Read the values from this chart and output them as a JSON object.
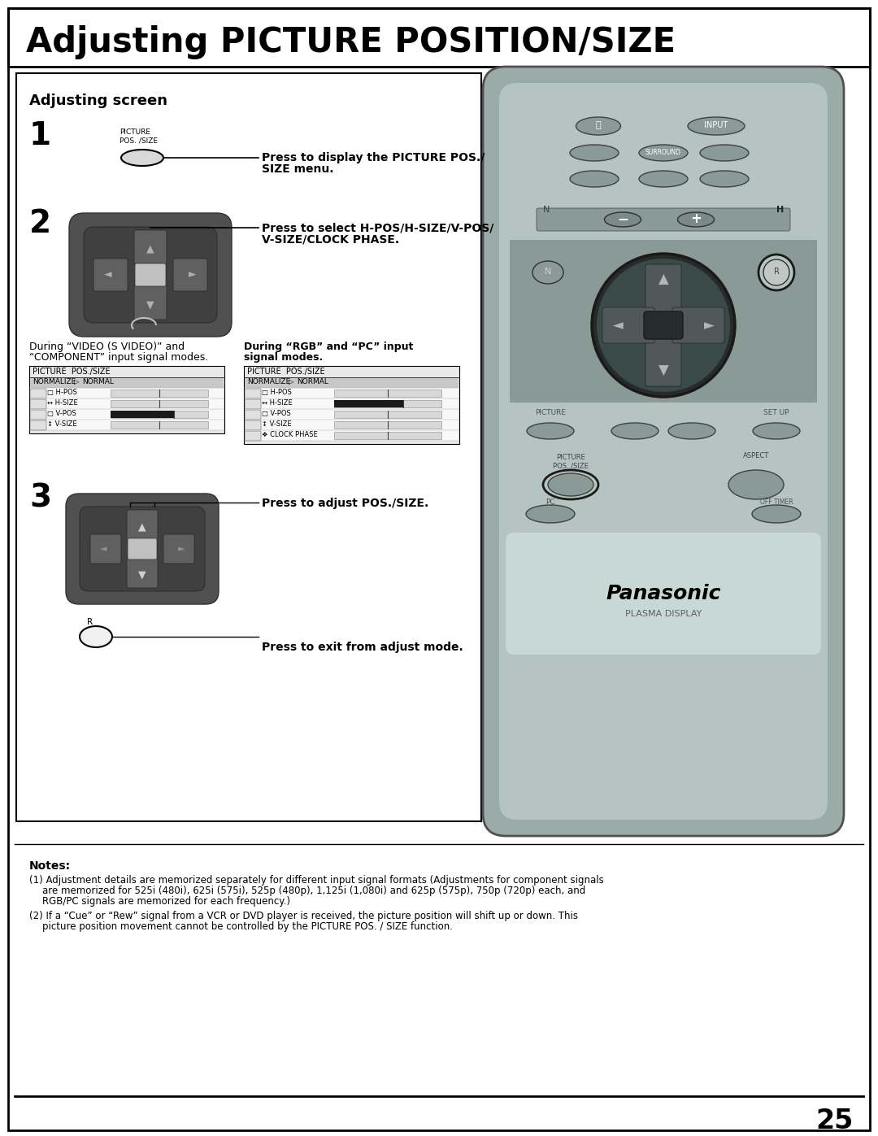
{
  "title": "Adjusting PICTURE POSITION/SIZE",
  "section_title": "Adjusting screen",
  "step1_label": "1",
  "step1_text_line1": "Press to display the PICTURE POS./",
  "step1_text_line2": "SIZE menu.",
  "step2_label": "2",
  "step2_text_line1": "Press to select H-POS/H-SIZE/V-POS/",
  "step2_text_line2": "V-SIZE/CLOCK PHASE.",
  "step3_label": "3",
  "step3_text": "Press to adjust POS./SIZE.",
  "step_r_text": "Press to exit from adjust mode.",
  "during_video_line1": "During “VIDEO (S VIDEO)” and",
  "during_video_line2": "“COMPONENT” input signal modes.",
  "during_rgb_line1": "During “RGB” and “PC” input",
  "during_rgb_line2": "signal modes.",
  "menu1_title": "PICTURE  POS./SIZE",
  "menu1_rows": [
    {
      "label": "NORMALIZE",
      "extra": "NORMAL",
      "normalize": true,
      "bar": false
    },
    {
      "label": "□ H-POS",
      "normalize": false,
      "bar": true,
      "fill": 0.5,
      "dark": false
    },
    {
      "label": "↔ H-SIZE",
      "normalize": false,
      "bar": true,
      "fill": 0.5,
      "dark": false
    },
    {
      "label": "□ V-POS",
      "normalize": false,
      "bar": true,
      "fill": 0.8,
      "dark": true
    },
    {
      "label": "↕ V-SIZE",
      "normalize": false,
      "bar": true,
      "fill": 0.5,
      "dark": false
    }
  ],
  "menu2_title": "PICTURE  POS./SIZE",
  "menu2_rows": [
    {
      "label": "NORMALIZE",
      "extra": "NORMAL",
      "normalize": true,
      "bar": false
    },
    {
      "label": "□ H-POS",
      "normalize": false,
      "bar": true,
      "fill": 0.5,
      "dark": false
    },
    {
      "label": "↔ H-SIZE",
      "normalize": false,
      "bar": true,
      "fill": 0.8,
      "dark": true
    },
    {
      "label": "□ V-POS",
      "normalize": false,
      "bar": true,
      "fill": 0.5,
      "dark": false
    },
    {
      "label": "↕ V-SIZE",
      "normalize": false,
      "bar": true,
      "fill": 0.5,
      "dark": false
    },
    {
      "label": "❖ CLOCK PHASE",
      "normalize": false,
      "bar": true,
      "fill": 0.5,
      "dark": false
    }
  ],
  "notes_title": "Notes:",
  "note1_line1": "(1) Adjustment details are memorized separately for different input signal formats (Adjustments for component signals",
  "note1_line2": "are memorized for 525i (480i), 625i (575i), 525p (480p), 1,125i (1,080i) and 625p (575p), 750p (720p) each, and",
  "note1_line3": "RGB/PC signals are memorized for each frequency.)",
  "note2_line1": "(2) If a “Cue” or “Rew” signal from a VCR or DVD player is received, the picture position will shift up or down. This",
  "note2_line2": "picture position movement cannot be controlled by the PICTURE POS. / SIZE function.",
  "page_number": "25",
  "bg_color": "#ffffff",
  "remote_body_color": "#9aaba8",
  "remote_inner_color": "#b5c4c1",
  "remote_dark_band": "#8a9a97",
  "btn_color": "#8a9a97",
  "dpad_outer_color": "#6a7a78",
  "dpad_ring_color": "#1a1a1a",
  "dpad_inner_color": "#5a6a68",
  "dpad_center_color": "#3a4a48",
  "highlight_btn_color": "#ffffff",
  "pic_btn_circle_color": "#c8d8d5"
}
